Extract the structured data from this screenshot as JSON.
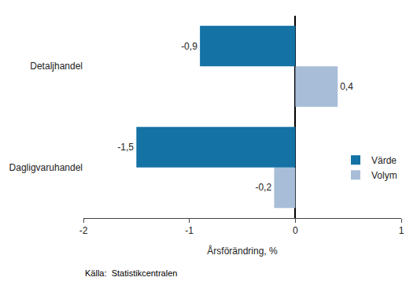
{
  "chart_data": {
    "type": "bar",
    "orientation": "horizontal",
    "categories": [
      "Dagligvaruhandel",
      "Detaljhandel"
    ],
    "series": [
      {
        "name": "Värde",
        "color": "#1472a4",
        "values": [
          -1.5,
          -0.9
        ],
        "value_labels": [
          "-1,5",
          "-0,9"
        ]
      },
      {
        "name": "Volym",
        "color": "#a8bdd8",
        "values": [
          -0.2,
          0.4
        ],
        "value_labels": [
          "-0,2",
          "0,4"
        ]
      }
    ],
    "xlabel": "Årsförändring, %",
    "xlim": [
      -2,
      1
    ],
    "xticks": [
      -2,
      -1,
      0,
      1
    ],
    "data_labels": true,
    "grid": false,
    "legend": "right",
    "annotations": [
      "Källa:  Statistikcentralen"
    ]
  }
}
